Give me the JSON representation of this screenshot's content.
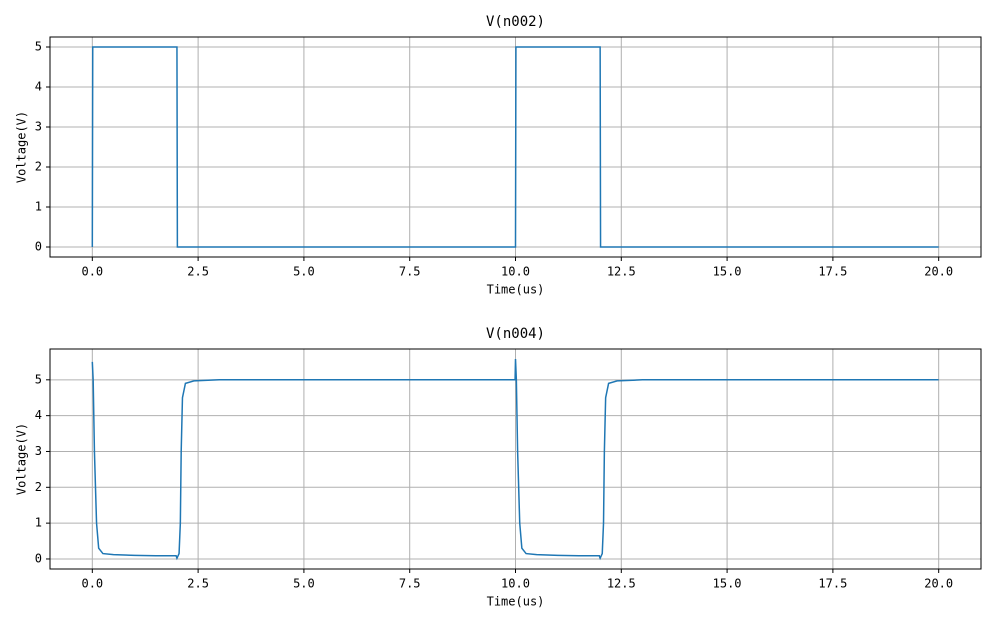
{
  "chart_data": [
    {
      "type": "line",
      "title": "V(n002)",
      "x_label": "Time(us)",
      "y_label": "Voltage(V)",
      "x": [
        0,
        0.01,
        2.0,
        2.01,
        10.0,
        10.01,
        12.0,
        12.01,
        20.0
      ],
      "values": [
        0,
        5,
        5,
        0,
        0,
        5,
        5,
        0,
        0
      ],
      "color": "#1f77b4",
      "grid": true,
      "xlim": [
        -1,
        21
      ],
      "xticks": [
        {
          "value": 0,
          "label": "0.0"
        },
        2.5,
        {
          "value": 5,
          "label": "5.0"
        },
        7.5,
        {
          "value": 10,
          "label": "10.0"
        },
        12.5,
        {
          "value": 15,
          "label": "15.0"
        },
        17.5,
        {
          "value": 20,
          "label": "20.0"
        }
      ],
      "ylim": [
        -0.25,
        5.25
      ],
      "yticks": [
        0,
        1,
        2,
        3,
        4,
        5
      ]
    },
    {
      "type": "line",
      "title": "V(n004)",
      "x_label": "Time(us)",
      "y_label": "Voltage(V)",
      "x": [
        0,
        0.02,
        0.05,
        0.1,
        0.15,
        0.25,
        0.5,
        1.0,
        1.5,
        1.98,
        2.0,
        2.05,
        2.08,
        2.1,
        2.13,
        2.2,
        2.4,
        3.0,
        9.99,
        10.0,
        10.02,
        10.05,
        10.1,
        10.15,
        10.25,
        10.5,
        11.0,
        11.5,
        11.98,
        12.0,
        12.05,
        12.08,
        12.1,
        12.13,
        12.2,
        12.4,
        13.0,
        20.0
      ],
      "values": [
        5.5,
        5.0,
        3.0,
        1.0,
        0.3,
        0.15,
        0.12,
        0.1,
        0.09,
        0.09,
        0.02,
        0.15,
        1.0,
        3.0,
        4.5,
        4.9,
        4.97,
        5.0,
        5.0,
        5.58,
        5.0,
        3.0,
        1.0,
        0.3,
        0.15,
        0.12,
        0.1,
        0.09,
        0.09,
        0.02,
        0.15,
        1.0,
        3.0,
        4.5,
        4.9,
        4.97,
        5.0,
        5.0
      ],
      "color": "#1f77b4",
      "grid": true,
      "xlim": [
        -1,
        21
      ],
      "xticks": [
        {
          "value": 0,
          "label": "0.0"
        },
        2.5,
        {
          "value": 5,
          "label": "5.0"
        },
        7.5,
        {
          "value": 10,
          "label": "10.0"
        },
        12.5,
        {
          "value": 15,
          "label": "15.0"
        },
        17.5,
        {
          "value": 20,
          "label": "20.0"
        }
      ],
      "ylim": [
        -0.28,
        5.86
      ],
      "yticks": [
        0,
        1,
        2,
        3,
        4,
        5
      ]
    }
  ]
}
